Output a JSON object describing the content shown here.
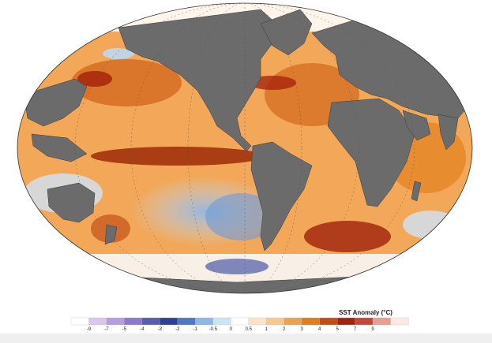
{
  "map": {
    "colorbar": {
      "title": "SST Anomaly (°C)",
      "ticks": [
        "-9",
        "-7",
        "-5",
        "-4",
        "-3",
        "-2",
        "-1",
        "-0.5",
        "0",
        "0.5",
        "1",
        "2",
        "3",
        "4",
        "5",
        "7",
        "9"
      ],
      "colors": [
        "#ffffff",
        "#d9c6ef",
        "#b69ee3",
        "#8d78cf",
        "#5a5bb8",
        "#2e3f9d",
        "#4f78c8",
        "#8fb7e6",
        "#cfe3f6",
        "#ffffff",
        "#fbe3c3",
        "#f8c98d",
        "#f2a14a",
        "#e57a1d",
        "#c64d0f",
        "#a12309",
        "#c74637",
        "#ee9a93",
        "#fde8e6"
      ]
    },
    "palette": {
      "ocean_neutral": "#fff5ea",
      "ocean_warm": "#f0a04a",
      "ocean_hot": "#b43a0a",
      "ocean_cool": "#bcd8f2",
      "ocean_cold": "#4f78c8",
      "land": "#6b6b6b",
      "graticule": "#555555"
    }
  }
}
